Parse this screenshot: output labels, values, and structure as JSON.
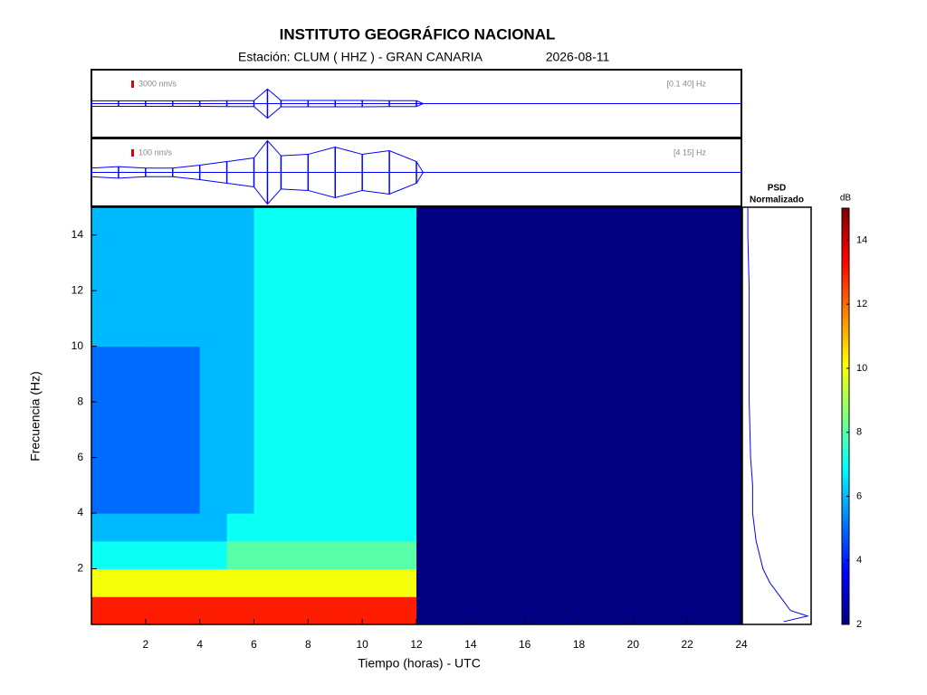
{
  "chart_data": [
    {
      "type": "envelope",
      "scale": 3000,
      "scale_label": "3000 nm/s",
      "band": "[0.1 40] Hz",
      "color": "#0000ff",
      "scale_color": "#e00000",
      "ylim": [
        -14000,
        14000
      ],
      "x": [
        0,
        1,
        2,
        3,
        4,
        5,
        6,
        6.5,
        7,
        8,
        9,
        10,
        11,
        12,
        12.25,
        13,
        14,
        15,
        16,
        17,
        18,
        19,
        20,
        21,
        22,
        23,
        24
      ],
      "values": [
        1100,
        1100,
        1100,
        1100,
        1100,
        1200,
        1200,
        6000,
        1300,
        1300,
        1300,
        1300,
        1200,
        1200,
        0,
        0,
        0,
        0,
        0,
        0,
        0,
        0,
        0,
        0,
        0,
        0,
        0
      ]
    },
    {
      "type": "envelope",
      "scale": 100,
      "scale_label": "100 nm/s",
      "band": "[4 15] Hz",
      "color": "#0000ff",
      "scale_color": "#e00000",
      "ylim": [
        -470,
        470
      ],
      "x": [
        0,
        1,
        2,
        3,
        4,
        5,
        6,
        6.5,
        7,
        8,
        9,
        10,
        11,
        12,
        12.25,
        13,
        14,
        15,
        16,
        17,
        18,
        19,
        20,
        21,
        22,
        23,
        24
      ],
      "values": [
        60,
        80,
        60,
        60,
        100,
        150,
        200,
        440,
        230,
        250,
        350,
        250,
        300,
        150,
        0,
        0,
        0,
        0,
        0,
        0,
        0,
        0,
        0,
        0,
        0,
        0,
        0
      ]
    },
    {
      "type": "heatmap",
      "title": "INSTITUTO GEOGRÁFICO NACIONAL",
      "subtitle": "Estación:  CLUM ( HHZ ) - GRAN CANARIA",
      "date": "2026-08-11",
      "x_label": "Tiempo (horas) - UTC",
      "y_label": "Frecuencia  (Hz)",
      "xlim": [
        0,
        24
      ],
      "xticks": [
        2,
        4,
        6,
        8,
        10,
        12,
        14,
        16,
        18,
        20,
        22,
        24
      ],
      "ylim": [
        0,
        15
      ],
      "yticks": [
        2,
        4,
        6,
        8,
        10,
        12,
        14
      ],
      "x": [
        0.5,
        1.5,
        2.5,
        3.5,
        4.5,
        5.5,
        6.5,
        7.5,
        8.5,
        9.5,
        10.5,
        11.5,
        12.5,
        13.5,
        14.5,
        15.5,
        16.5,
        17.5,
        18.5,
        19.5,
        20.5,
        21.5,
        22.5,
        23.5
      ],
      "y": [
        0.5,
        1.5,
        2.5,
        3.5,
        4.5,
        5.5,
        6.5,
        7.5,
        8.5,
        9.5,
        10.5,
        11.5,
        12.5,
        13.5,
        14.5
      ],
      "z": [
        [
          13,
          13,
          13,
          13,
          13,
          13,
          13,
          13,
          13,
          13,
          13,
          13,
          2,
          2,
          2,
          2,
          2,
          2,
          2,
          2,
          2,
          2,
          2,
          2
        ],
        [
          10,
          10,
          10,
          10,
          10,
          10,
          10,
          10,
          10,
          10,
          10,
          10,
          2,
          2,
          2,
          2,
          2,
          2,
          2,
          2,
          2,
          2,
          2,
          2
        ],
        [
          7,
          7,
          7,
          7,
          7,
          8,
          8,
          8,
          8,
          8,
          8,
          8,
          2,
          2,
          2,
          2,
          2,
          2,
          2,
          2,
          2,
          2,
          2,
          2
        ],
        [
          6,
          6,
          6,
          6,
          6,
          7,
          7,
          7,
          7,
          7,
          7,
          7,
          2,
          2,
          2,
          2,
          2,
          2,
          2,
          2,
          2,
          2,
          2,
          2
        ],
        [
          5,
          5,
          5,
          5,
          6,
          6,
          7,
          7,
          7,
          7,
          7,
          7,
          2,
          2,
          2,
          2,
          2,
          2,
          2,
          2,
          2,
          2,
          2,
          2
        ],
        [
          5,
          5,
          5,
          5,
          6,
          6,
          7,
          7,
          7,
          7,
          7,
          7,
          2,
          2,
          2,
          2,
          2,
          2,
          2,
          2,
          2,
          2,
          2,
          2
        ],
        [
          5,
          5,
          5,
          5,
          6,
          6,
          7,
          7,
          7,
          7,
          7,
          7,
          2,
          2,
          2,
          2,
          2,
          2,
          2,
          2,
          2,
          2,
          2,
          2
        ],
        [
          5,
          5,
          5,
          5,
          6,
          6,
          7,
          7,
          7,
          7,
          7,
          7,
          2,
          2,
          2,
          2,
          2,
          2,
          2,
          2,
          2,
          2,
          2,
          2
        ],
        [
          5,
          5,
          5,
          5,
          6,
          6,
          7,
          7,
          7,
          7,
          7,
          7,
          2,
          2,
          2,
          2,
          2,
          2,
          2,
          2,
          2,
          2,
          2,
          2
        ],
        [
          5,
          5,
          5,
          5,
          6,
          6,
          7,
          7,
          7,
          7,
          7,
          7,
          2,
          2,
          2,
          2,
          2,
          2,
          2,
          2,
          2,
          2,
          2,
          2
        ],
        [
          6,
          6,
          6,
          6,
          6,
          6,
          7,
          7,
          7,
          7,
          7,
          7,
          2,
          2,
          2,
          2,
          2,
          2,
          2,
          2,
          2,
          2,
          2,
          2
        ],
        [
          6,
          6,
          6,
          6,
          6,
          6,
          7,
          7,
          7,
          7,
          7,
          7,
          2,
          2,
          2,
          2,
          2,
          2,
          2,
          2,
          2,
          2,
          2,
          2
        ],
        [
          6,
          6,
          6,
          6,
          6,
          6,
          7,
          7,
          7,
          7,
          7,
          7,
          2,
          2,
          2,
          2,
          2,
          2,
          2,
          2,
          2,
          2,
          2,
          2
        ],
        [
          6,
          6,
          6,
          6,
          6,
          6,
          7,
          7,
          7,
          7,
          7,
          7,
          2,
          2,
          2,
          2,
          2,
          2,
          2,
          2,
          2,
          2,
          2,
          2
        ],
        [
          6,
          6,
          6,
          6,
          6,
          6,
          7,
          7,
          7,
          7,
          7,
          7,
          2,
          2,
          2,
          2,
          2,
          2,
          2,
          2,
          2,
          2,
          2,
          2
        ]
      ]
    },
    {
      "type": "psd",
      "title": "PSD",
      "subtitle": "Normalizado",
      "color": "#0000ff",
      "xlim": [
        0,
        1
      ],
      "ylim": [
        0,
        15
      ],
      "y": [
        0.1,
        0.3,
        0.5,
        1,
        1.5,
        2,
        3,
        4,
        5,
        6,
        8,
        10,
        12,
        14,
        15
      ],
      "x": [
        0.6,
        0.95,
        0.7,
        0.55,
        0.4,
        0.3,
        0.2,
        0.15,
        0.15,
        0.12,
        0.1,
        0.1,
        0.1,
        0.08,
        0.08
      ]
    },
    {
      "type": "colorbar",
      "title": "dB",
      "ylim": [
        2,
        15
      ],
      "yticks": [
        2,
        4,
        6,
        8,
        10,
        12,
        14
      ]
    }
  ]
}
